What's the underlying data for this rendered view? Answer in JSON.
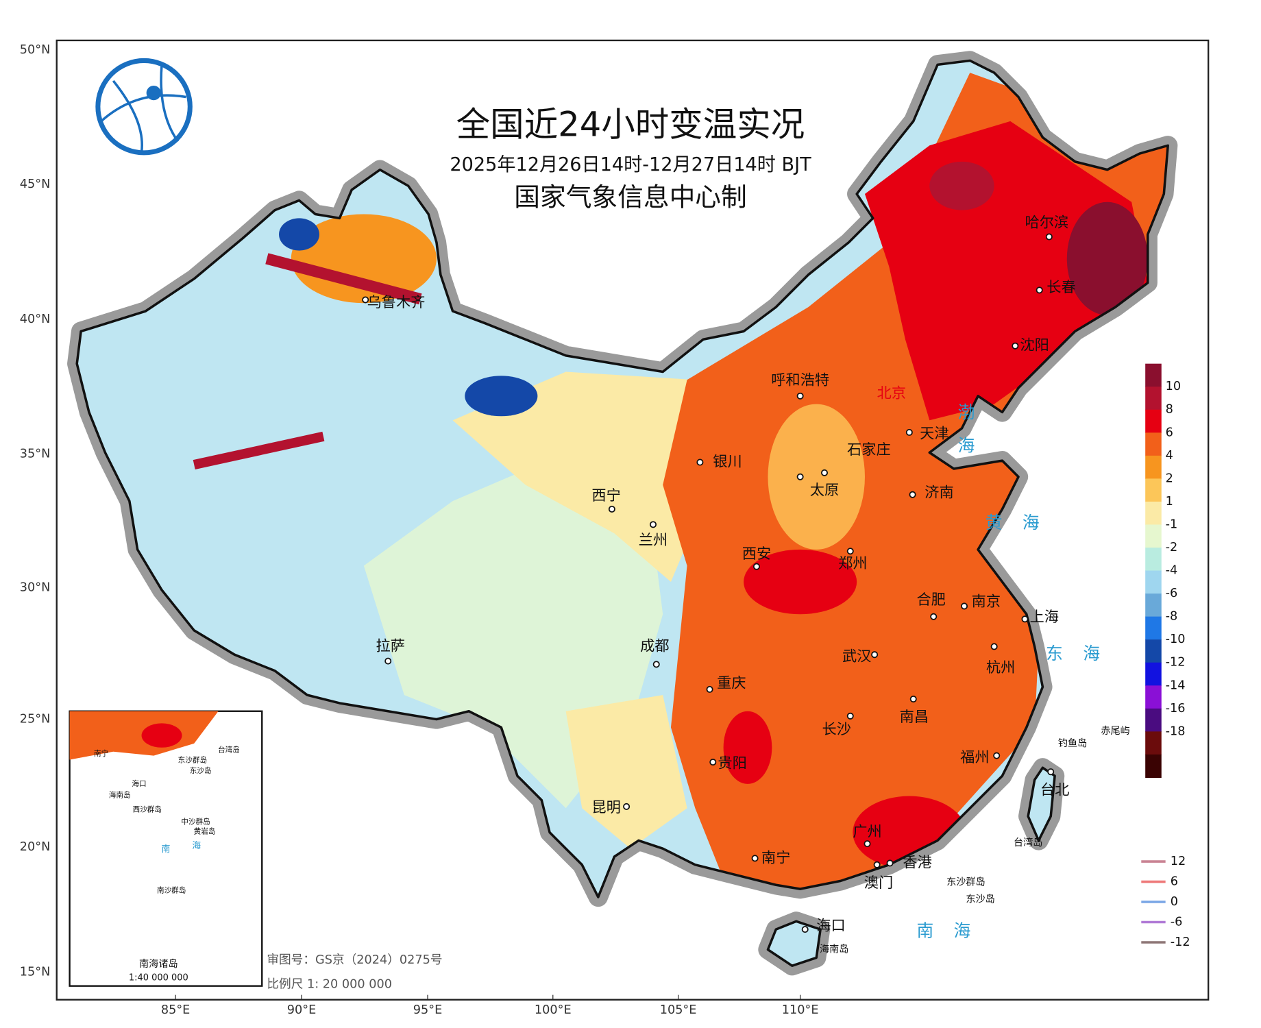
{
  "header": {
    "title": "全国近24小时变温实况",
    "subtitle": "2025年12月26日14时-12月27日14时 BJT",
    "producer": "国家气象信息中心制"
  },
  "axes": {
    "latitude": [
      "50°N",
      "45°N",
      "40°N",
      "35°N",
      "30°N",
      "25°N",
      "20°N",
      "15°N"
    ],
    "longitude": [
      "85°E",
      "90°E",
      "95°E",
      "100°E",
      "105°E",
      "110°E"
    ]
  },
  "legend": {
    "labels": [
      10,
      8,
      6,
      4,
      2,
      1,
      -1,
      -2,
      -4,
      -6,
      -8,
      -10,
      -12,
      -14,
      -16,
      -18
    ],
    "colors": [
      "#8a0f2e",
      "#b3122f",
      "#e60012",
      "#f2601a",
      "#f7951f",
      "#fcc659",
      "#fbeaa6",
      "#e6f7cf",
      "#b9ece0",
      "#9fd6ef",
      "#69a9d9",
      "#1f78e6",
      "#1448a8",
      "#1212e0",
      "#8a10d6",
      "#4a0c80",
      "#6b0c0c",
      "#3a0303"
    ]
  },
  "contour_legend": {
    "labels": [
      12,
      6,
      0,
      -6,
      -12
    ],
    "colors": [
      "#c98393",
      "#ee7a7a",
      "#7aa6e6",
      "#b07ad6",
      "#8e7676"
    ]
  },
  "cities": [
    "乌鲁木齐",
    "哈尔滨",
    "长春",
    "沈阳",
    "呼和浩特",
    "北京",
    "天津",
    "石家庄",
    "银川",
    "太原",
    "济南",
    "西宁",
    "兰州",
    "西安",
    "郑州",
    "合肥",
    "南京",
    "上海",
    "武汉",
    "杭州",
    "成都",
    "重庆",
    "拉萨",
    "长沙",
    "南昌",
    "贵阳",
    "福州",
    "台北",
    "昆明",
    "广州",
    "南宁",
    "香港",
    "澳门",
    "海口"
  ],
  "seas": [
    "渤海",
    "黄海",
    "东海",
    "南海"
  ],
  "islands": [
    "钓鱼岛",
    "赤尾屿",
    "台湾岛",
    "东沙群岛",
    "东沙岛",
    "海南岛"
  ],
  "inset": {
    "title": "南海诸岛",
    "scale": "1:40 000 000",
    "labels": [
      "南宁",
      "海口",
      "海南岛",
      "东沙群岛",
      "东沙岛",
      "西沙群岛",
      "中沙群岛",
      "黄岩岛",
      "南沙群岛",
      "台湾岛",
      "南",
      "海"
    ]
  },
  "footer": {
    "approval": "审图号：GS京（2024）0275号",
    "scale": "比例尺 1: 20 000 000"
  }
}
